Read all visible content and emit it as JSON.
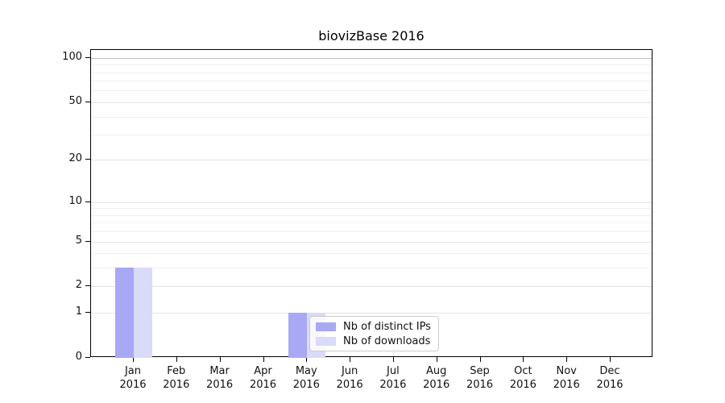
{
  "chart_data": {
    "type": "bar",
    "title": "biovizBase 2016",
    "categories": [
      "Jan",
      "Feb",
      "Mar",
      "Apr",
      "May",
      "Jun",
      "Jul",
      "Aug",
      "Sep",
      "Oct",
      "Nov",
      "Dec"
    ],
    "category_year": "2016",
    "series": [
      {
        "name": "Nb of distinct IPs",
        "slug": "distinct-ips",
        "color": "#a8a8f4",
        "values": [
          3,
          0,
          0,
          0,
          1,
          0,
          0,
          0,
          0,
          0,
          0,
          0
        ]
      },
      {
        "name": "Nb of downloads",
        "slug": "downloads",
        "color": "#dadaf9",
        "values": [
          3,
          0,
          0,
          0,
          1,
          0,
          0,
          0,
          0,
          0,
          0,
          0
        ]
      }
    ],
    "y_axis": {
      "scale": "log1p",
      "ticks": [
        0,
        1,
        2,
        5,
        10,
        20,
        50,
        100
      ],
      "minor_ticks": [
        3,
        4,
        6,
        7,
        8,
        9,
        30,
        40,
        60,
        70,
        80,
        90
      ],
      "max": 113
    },
    "xlabel": "",
    "ylabel": "",
    "grid": true,
    "legend_position": "lower-center",
    "colors": {
      "grid_major": "#e3e3e3",
      "grid_minor": "#f0f0f0",
      "grid_strong": "#c3c3c3",
      "spine": "#000000",
      "text": "#111111",
      "background": "#ffffff"
    }
  }
}
